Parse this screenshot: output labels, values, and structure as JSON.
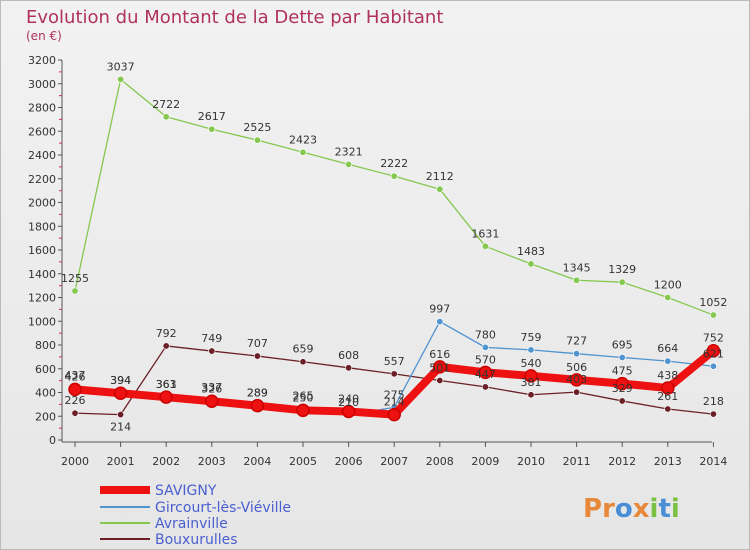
{
  "chart_data": {
    "type": "line",
    "title": "Evolution du Montant de la Dette par Habitant",
    "subtitle": "(en €)",
    "xlabel": "",
    "ylabel": "",
    "ylim": [
      0,
      3200
    ],
    "yticks": [
      0,
      200,
      400,
      600,
      800,
      1000,
      1200,
      1400,
      1600,
      1800,
      2000,
      2200,
      2400,
      2600,
      2800,
      3000,
      3200
    ],
    "x": [
      "2000",
      "2001",
      "2002",
      "2003",
      "2004",
      "2005",
      "2006",
      "2007",
      "2008",
      "2009",
      "2010",
      "2011",
      "2012",
      "2013",
      "2014"
    ],
    "grid": false,
    "legend_position": "bottom-left",
    "series": [
      {
        "name": "SAVIGNY",
        "color": "#ee1111",
        "values": [
          426,
          394,
          361,
          326,
          289,
          250,
          240,
          214,
          616,
          570,
          540,
          506,
          475,
          438,
          752
        ]
      },
      {
        "name": "Gircourt-lès-Viéville",
        "color": "#4f93cf",
        "values": [
          437,
          394,
          363,
          337,
          289,
          265,
          210,
          275,
          997,
          780,
          759,
          727,
          695,
          664,
          621
        ]
      },
      {
        "name": "Avrainville",
        "color": "#85c850",
        "values": [
          1255,
          3037,
          2722,
          2617,
          2525,
          2423,
          2321,
          2222,
          2112,
          1631,
          1483,
          1345,
          1329,
          1200,
          1052
        ]
      },
      {
        "name": "Bouxurulles",
        "color": "#6b2027",
        "values": [
          226,
          214,
          792,
          749,
          707,
          659,
          608,
          557,
          501,
          447,
          381,
          403,
          329,
          261,
          218
        ]
      }
    ]
  },
  "logo": {
    "text": "Proxiti",
    "colors": [
      "#e8883a",
      "#4a8fd6",
      "#7bc142"
    ]
  }
}
